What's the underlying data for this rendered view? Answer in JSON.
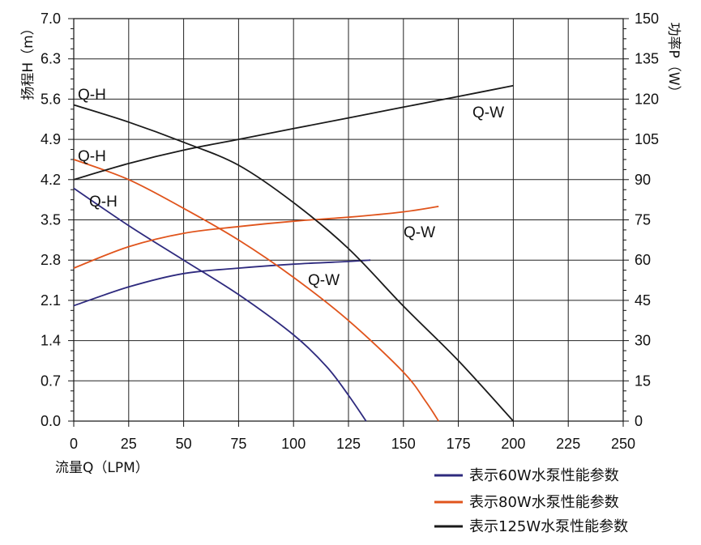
{
  "chart_data": {
    "type": "line",
    "title": "",
    "xlabel": "流量Q（LPM）",
    "ylabel": "扬程H（m）",
    "y2label": "功率P（W）",
    "xlim": [
      0,
      250
    ],
    "ylim": [
      0,
      7.0
    ],
    "y2lim": [
      0,
      150
    ],
    "x_ticks": [
      "0",
      "25",
      "50",
      "75",
      "100",
      "125",
      "150",
      "175",
      "200",
      "225",
      "250"
    ],
    "y_ticks": [
      "0.0",
      "0.7",
      "1.4",
      "2.1",
      "2.8",
      "3.5",
      "4.2",
      "4.9",
      "5.6",
      "6.3",
      "7.0"
    ],
    "y2_ticks": [
      "0",
      "15",
      "30",
      "45",
      "60",
      "75",
      "90",
      "105",
      "120",
      "135",
      "150"
    ],
    "grid": true,
    "series": [
      {
        "name": "表示60W水泵性能参数",
        "color": "#2e2a7e",
        "qh": {
          "label": "Q-H",
          "axis": "left",
          "x": [
            0,
            25,
            50,
            75,
            100,
            115,
            125,
            133
          ],
          "y": [
            4.05,
            3.4,
            2.8,
            2.2,
            1.5,
            0.95,
            0.45,
            0.0
          ]
        },
        "qw": {
          "label": "Q-W",
          "axis": "right",
          "x": [
            0,
            25,
            50,
            75,
            100,
            125,
            135
          ],
          "y": [
            43,
            50,
            55,
            57,
            58.5,
            59.5,
            60
          ]
        }
      },
      {
        "name": "表示80W水泵性能参数",
        "color": "#e0541c",
        "qh": {
          "label": "Q-H",
          "axis": "left",
          "x": [
            0,
            25,
            50,
            75,
            100,
            125,
            150,
            160,
            166
          ],
          "y": [
            4.55,
            4.2,
            3.7,
            3.15,
            2.5,
            1.75,
            0.85,
            0.35,
            0.0
          ]
        },
        "qw": {
          "label": "Q-W",
          "axis": "right",
          "x": [
            0,
            25,
            50,
            75,
            100,
            125,
            150,
            166
          ],
          "y": [
            57,
            65,
            70,
            72.5,
            74.5,
            76,
            78,
            80
          ]
        }
      },
      {
        "name": "表示125W水泵性能参数",
        "color": "#1a1a1a",
        "qh": {
          "label": "Q-H",
          "axis": "left",
          "x": [
            0,
            25,
            50,
            75,
            100,
            125,
            150,
            175,
            200
          ],
          "y": [
            5.5,
            5.2,
            4.85,
            4.45,
            3.8,
            3.0,
            2.0,
            1.05,
            0.0
          ]
        },
        "qw": {
          "label": "Q-W",
          "axis": "right",
          "x": [
            0,
            25,
            50,
            75,
            100,
            125,
            150,
            175,
            200
          ],
          "y": [
            90,
            96,
            101,
            105,
            109,
            113,
            117,
            121,
            125
          ]
        }
      }
    ],
    "curve_labels": [
      "Q-H",
      "Q-H",
      "Q-H",
      "Q-W",
      "Q-W",
      "Q-W"
    ]
  }
}
